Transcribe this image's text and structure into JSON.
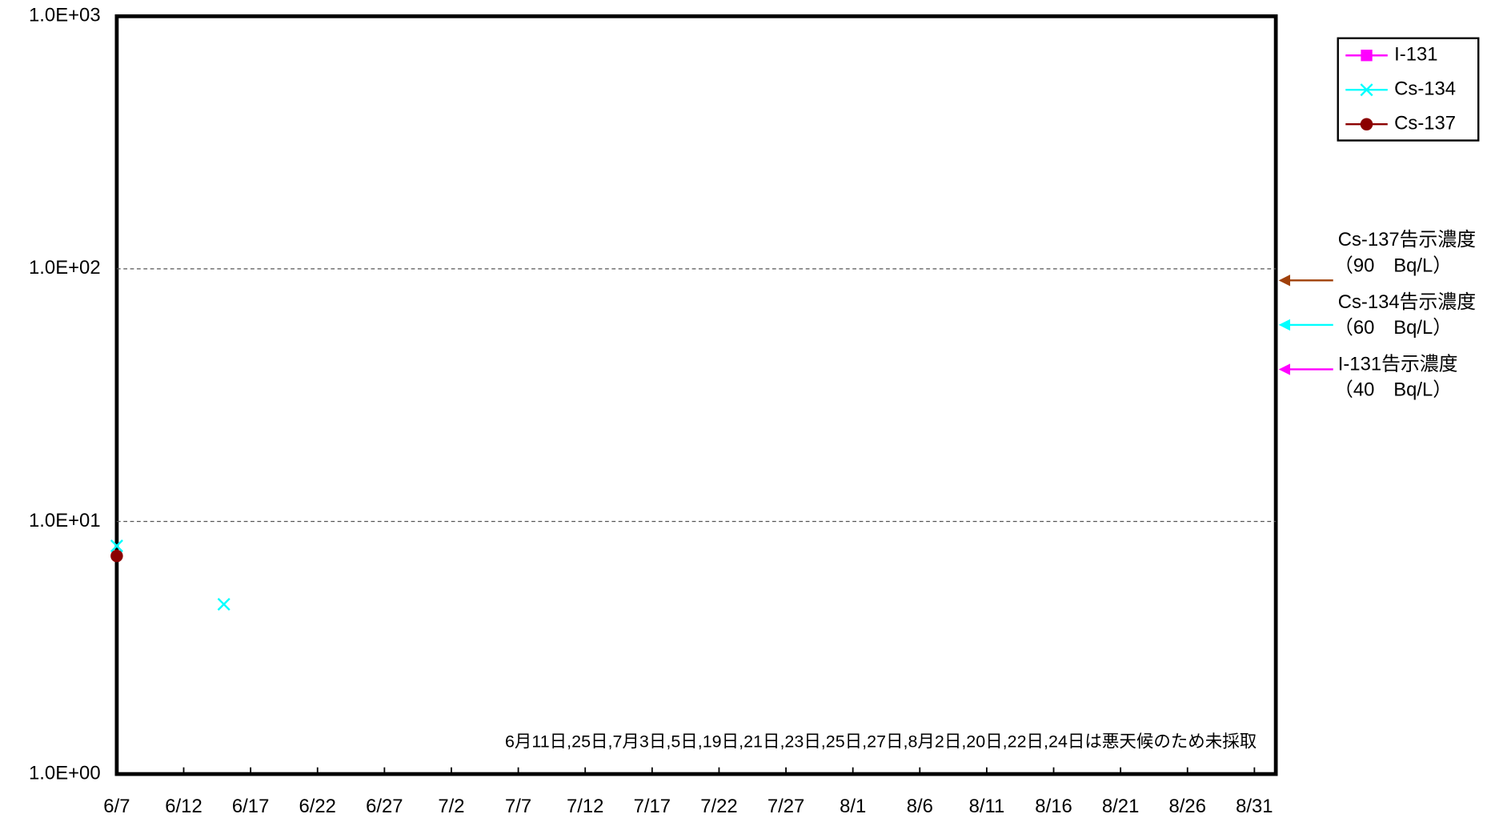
{
  "chart_data": {
    "type": "scatter",
    "xticks": [
      {
        "value": 0,
        "label": "6/7"
      },
      {
        "value": 5,
        "label": "6/12"
      },
      {
        "value": 10,
        "label": "6/17"
      },
      {
        "value": 15,
        "label": "6/22"
      },
      {
        "value": 20,
        "label": "6/27"
      },
      {
        "value": 25,
        "label": "7/2"
      },
      {
        "value": 30,
        "label": "7/7"
      },
      {
        "value": 35,
        "label": "7/12"
      },
      {
        "value": 40,
        "label": "7/17"
      },
      {
        "value": 45,
        "label": "7/22"
      },
      {
        "value": 50,
        "label": "7/27"
      },
      {
        "value": 55,
        "label": "8/1"
      },
      {
        "value": 60,
        "label": "8/6"
      },
      {
        "value": 65,
        "label": "8/11"
      },
      {
        "value": 70,
        "label": "8/16"
      },
      {
        "value": 75,
        "label": "8/21"
      },
      {
        "value": 80,
        "label": "8/26"
      },
      {
        "value": 85,
        "label": "8/31"
      }
    ],
    "xlim": [
      0,
      86.6
    ],
    "ylim": [
      1,
      1000
    ],
    "log_y": true,
    "yticks": [
      {
        "value": 1,
        "label": "1.0E+00"
      },
      {
        "value": 10,
        "label": "1.0E+01"
      },
      {
        "value": 100,
        "label": "1.0E+02"
      },
      {
        "value": 1000,
        "label": "1.0E+03"
      }
    ],
    "grid": true,
    "x": [
      0,
      8
    ],
    "series": [
      {
        "name": "I-131",
        "color": "#ff00ff",
        "marker": "square",
        "values": [
          null,
          null
        ]
      },
      {
        "name": "Cs-134",
        "color": "#00ffff",
        "marker": "x",
        "values": [
          8.0,
          4.7
        ]
      },
      {
        "name": "Cs-137",
        "color": "#8b0000",
        "marker": "circle",
        "values": [
          7.3,
          null
        ]
      }
    ],
    "legend": "top-right",
    "limits": [
      {
        "label": "Cs-137告示濃度",
        "sublabel": "（90　Bq/L）",
        "value": 90,
        "color": "#a0400a"
      },
      {
        "label": "Cs-134告示濃度",
        "sublabel": "（60　Bq/L）",
        "value": 60,
        "color": "#00ffff"
      },
      {
        "label": "I-131告示濃度",
        "sublabel": "（40　Bq/L）",
        "value": 40,
        "color": "#ff00ff"
      }
    ],
    "annotation": "6月11日,25日,7月3日,5日,19日,21日,23日,25日,27日,8月2日,20日,22日,24日は悪天候のため未採取"
  }
}
